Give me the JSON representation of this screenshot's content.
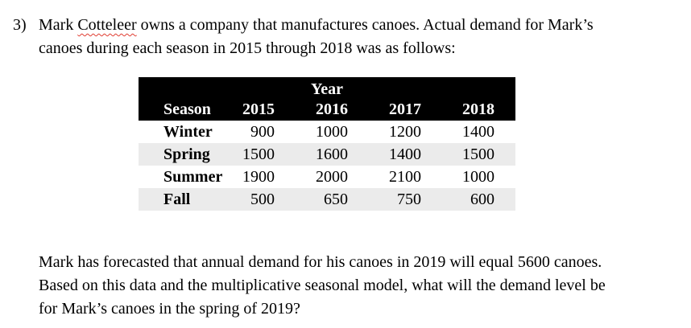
{
  "colors": {
    "page_bg": "#ffffff",
    "text": "#000000",
    "header_bg": "#000000",
    "header_text": "#ffffff",
    "row_stripe": "#ebebeb",
    "spellcheck_red": "#e03c31"
  },
  "intro": {
    "number": "3)",
    "line1_pre": "Mark ",
    "misspelled_word": "Cotteleer",
    "line1_post": " owns a company that manufactures canoes. Actual demand for Mark’s",
    "line2": "canoes during each season in 2015 through 2018 was as follows:"
  },
  "table": {
    "year_header": "Year",
    "columns": [
      "Season",
      "2015",
      "2016",
      "2017",
      "2018"
    ],
    "rows": [
      {
        "season": "Winter",
        "values": [
          900,
          1000,
          1200,
          1400
        ]
      },
      {
        "season": "Spring",
        "values": [
          1500,
          1600,
          1400,
          1500
        ]
      },
      {
        "season": "Summer",
        "values": [
          1900,
          2000,
          2100,
          1000
        ]
      },
      {
        "season": "Fall",
        "values": [
          500,
          650,
          750,
          600
        ]
      }
    ]
  },
  "question": {
    "lines": [
      "Mark has forecasted that annual demand for his canoes in 2019 will equal 5600 canoes.",
      "Based on this data and the multiplicative seasonal model, what will the demand level be",
      "for Mark’s canoes in the spring of 2019?"
    ]
  }
}
